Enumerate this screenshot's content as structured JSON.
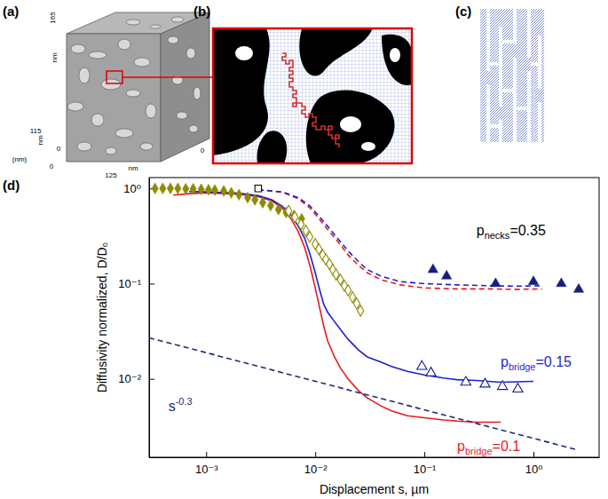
{
  "panels": {
    "a": {
      "label": "(a)",
      "axis_texts": [
        "165",
        "nm",
        "0",
        "nm",
        "115",
        "(nm)",
        "0",
        "125",
        "nm",
        "0"
      ]
    },
    "b": {
      "label": "(b)"
    },
    "c": {
      "label": "(c)"
    }
  },
  "chart_data": {
    "type": "scatter",
    "panel_label": "(d)",
    "x_label": "Displacement s, µm",
    "y_label": "Diffusivity normalized, D/D₀",
    "log": true,
    "xlim": [
      0.0003,
      4
    ],
    "ylim": [
      0.0015,
      1.3
    ],
    "xticks": [
      {
        "value": 0.001,
        "label": "10⁻³"
      },
      {
        "value": 0.01,
        "label": "10⁻²"
      },
      {
        "value": 0.1,
        "label": "10⁻¹"
      },
      {
        "value": 1,
        "label": "10⁰"
      }
    ],
    "yticks": [
      {
        "value": 0.01,
        "label": "10⁻²"
      },
      {
        "value": 0.1,
        "label": "10⁻¹"
      },
      {
        "value": 1,
        "label": "10⁰"
      }
    ],
    "annotations": [
      {
        "text": "p",
        "sub": "necks",
        "tail": "=0.35",
        "x": 0.3,
        "y": 0.32,
        "color": "#000000"
      },
      {
        "text": "p",
        "sub": "bridge",
        "tail": "=0.15",
        "x": 0.5,
        "y": 0.0135,
        "color": "#1f1fd0"
      },
      {
        "text": "p",
        "sub": "bridge",
        "tail": "=0.1",
        "x": 0.2,
        "y": 0.00175,
        "color": "#e8191c"
      },
      {
        "text": "s",
        "sup": "-0.3",
        "x": 0.00045,
        "y": 0.0046,
        "color": "#1a2a7a"
      }
    ],
    "series": [
      {
        "type": "line",
        "line_style": "dashed",
        "color": "#e8191c",
        "x": [
          0.003,
          0.005,
          0.007,
          0.009,
          0.011,
          0.013,
          0.016,
          0.02,
          0.025,
          0.03,
          0.04,
          0.06,
          0.1,
          0.2,
          0.4,
          0.7,
          1.2
        ],
        "values": [
          0.97,
          0.91,
          0.78,
          0.62,
          0.47,
          0.37,
          0.28,
          0.2,
          0.155,
          0.13,
          0.11,
          0.097,
          0.09,
          0.088,
          0.088,
          0.087,
          0.088
        ]
      },
      {
        "type": "line",
        "line_style": "dashed",
        "color": "#1f1fd0",
        "x": [
          0.003,
          0.005,
          0.007,
          0.009,
          0.011,
          0.013,
          0.016,
          0.02,
          0.025,
          0.03,
          0.04,
          0.06,
          0.1,
          0.2,
          0.4,
          0.7,
          1.2
        ],
        "values": [
          0.97,
          0.92,
          0.8,
          0.65,
          0.5,
          0.4,
          0.3,
          0.22,
          0.17,
          0.14,
          0.12,
          0.105,
          0.1,
          0.097,
          0.095,
          0.094,
          0.095
        ]
      },
      {
        "type": "line",
        "line_style": "solid",
        "color": "#e8191c",
        "x": [
          0.0005,
          0.0007,
          0.001,
          0.002,
          0.003,
          0.004,
          0.005,
          0.006,
          0.007,
          0.008,
          0.009,
          0.01,
          0.011,
          0.012,
          0.013,
          0.015,
          0.017,
          0.02,
          0.025,
          0.03,
          0.04,
          0.05,
          0.07,
          0.1,
          0.15,
          0.2,
          0.3,
          0.5
        ],
        "values": [
          0.85,
          0.88,
          0.9,
          0.87,
          0.82,
          0.74,
          0.62,
          0.48,
          0.35,
          0.24,
          0.15,
          0.09,
          0.055,
          0.035,
          0.025,
          0.017,
          0.013,
          0.01,
          0.0075,
          0.0063,
          0.0052,
          0.0046,
          0.0041,
          0.0039,
          0.0037,
          0.0036,
          0.0035,
          0.0035
        ]
      },
      {
        "type": "line",
        "line_style": "solid",
        "color": "#1f1fd0",
        "x": [
          0.0007,
          0.001,
          0.002,
          0.003,
          0.004,
          0.005,
          0.006,
          0.007,
          0.008,
          0.009,
          0.01,
          0.011,
          0.012,
          0.013,
          0.015,
          0.017,
          0.02,
          0.025,
          0.03,
          0.04,
          0.05,
          0.07,
          0.1,
          0.15,
          0.2,
          0.3,
          0.5,
          0.7,
          1.0
        ],
        "values": [
          0.93,
          0.92,
          0.89,
          0.84,
          0.76,
          0.65,
          0.52,
          0.4,
          0.3,
          0.2,
          0.13,
          0.085,
          0.06,
          0.05,
          0.04,
          0.033,
          0.026,
          0.02,
          0.017,
          0.015,
          0.0135,
          0.012,
          0.011,
          0.0102,
          0.0098,
          0.0096,
          0.0092,
          0.0093,
          0.0094
        ]
      },
      {
        "type": "line",
        "line_style": "dashed",
        "color": "#1a2a7a",
        "x": [
          0.0003,
          2.5
        ],
        "values": [
          0.027,
          0.0018
        ]
      },
      {
        "type": "scatter",
        "marker": "diamond",
        "color": "#8c8c00",
        "x": [
          0.00034,
          0.0004,
          0.00047,
          0.00055,
          0.00065,
          0.00076,
          0.0009,
          0.00105,
          0.0012,
          0.00145,
          0.0017,
          0.002,
          0.0024,
          0.0028,
          0.0033,
          0.0039,
          0.0046,
          0.0054,
          0.0064,
          0.0075
        ],
        "values": [
          1.0,
          1.0,
          1.0,
          1.0,
          0.99,
          0.99,
          0.98,
          0.97,
          0.96,
          0.94,
          0.9,
          0.86,
          0.8,
          0.76,
          0.71,
          0.66,
          0.6,
          0.56,
          0.52,
          0.48
        ]
      },
      {
        "type": "scatter",
        "marker": "diamond-open",
        "color": "#8c8c00",
        "x": [
          0.0057,
          0.0065,
          0.0074,
          0.0082,
          0.0089,
          0.01,
          0.0108,
          0.0117,
          0.0125,
          0.0135,
          0.0145,
          0.0155,
          0.017,
          0.0185,
          0.02,
          0.022,
          0.024,
          0.026
        ],
        "values": [
          0.58,
          0.5,
          0.42,
          0.36,
          0.31,
          0.26,
          0.23,
          0.2,
          0.18,
          0.16,
          0.14,
          0.125,
          0.11,
          0.095,
          0.085,
          0.072,
          0.062,
          0.052
        ]
      },
      {
        "type": "scatter",
        "marker": "triangle",
        "color": "#14207a",
        "x": [
          0.12,
          0.16,
          0.45,
          1.0,
          1.8,
          2.6
        ],
        "values": [
          0.14,
          0.12,
          0.1,
          0.105,
          0.1,
          0.087
        ]
      },
      {
        "type": "scatter",
        "marker": "triangle-open",
        "color": "#14207a",
        "x": [
          0.095,
          0.115,
          0.24,
          0.36,
          0.52,
          0.72
        ],
        "values": [
          0.0135,
          0.0115,
          0.0092,
          0.0088,
          0.0083,
          0.0078
        ]
      },
      {
        "type": "scatter",
        "marker": "square-open",
        "color": "#000000",
        "x": [
          0.003
        ],
        "values": [
          1.0
        ]
      }
    ]
  }
}
